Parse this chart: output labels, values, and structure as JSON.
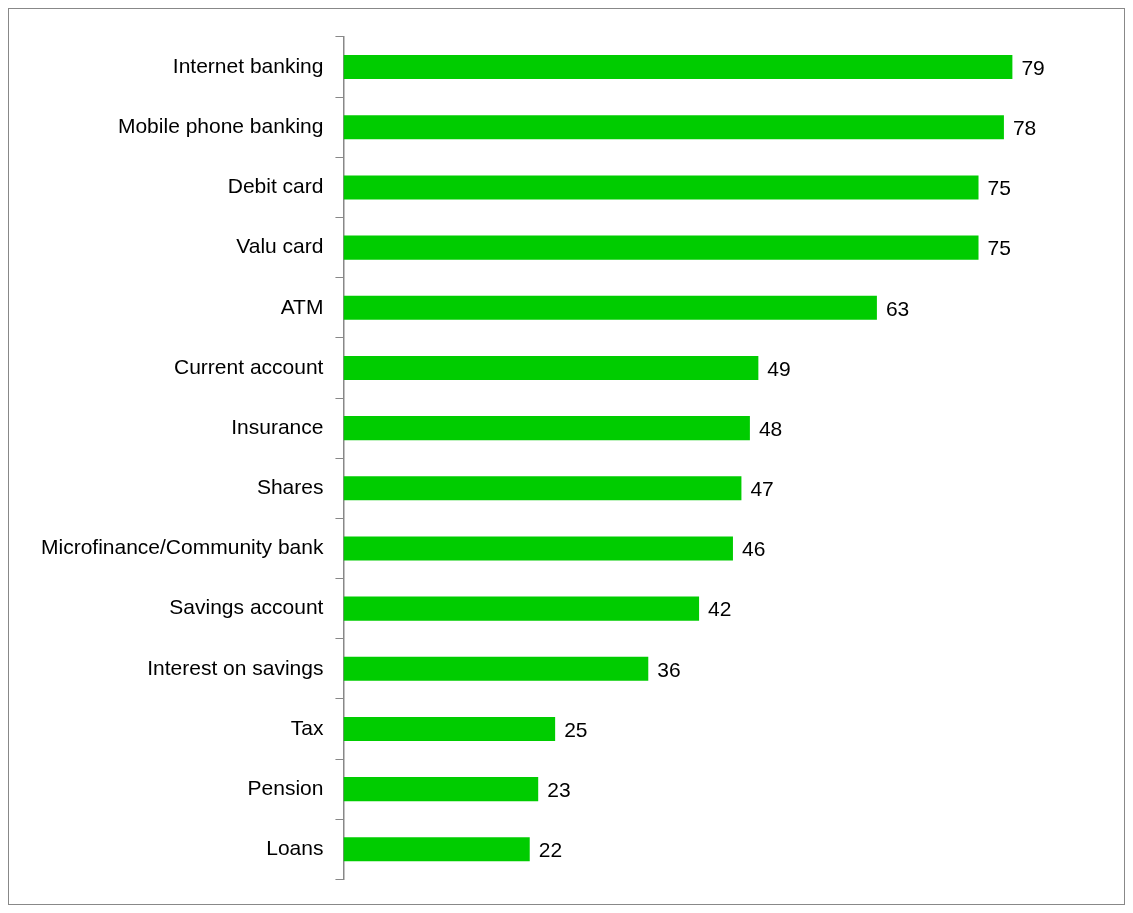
{
  "chart_data": {
    "type": "bar",
    "orientation": "horizontal",
    "categories": [
      "Internet banking",
      "Mobile phone banking",
      "Debit card",
      "Valu card",
      "ATM",
      "Current account",
      "Insurance",
      "Shares",
      "Microfinance/Community bank",
      "Savings account",
      "Interest on savings",
      "Tax",
      "Pension",
      "Loans"
    ],
    "values": [
      79,
      78,
      75,
      75,
      63,
      49,
      48,
      47,
      46,
      42,
      36,
      25,
      23,
      22
    ],
    "color": "#00cc00",
    "data_labels": true,
    "tick_labels": "y",
    "legend": false
  }
}
